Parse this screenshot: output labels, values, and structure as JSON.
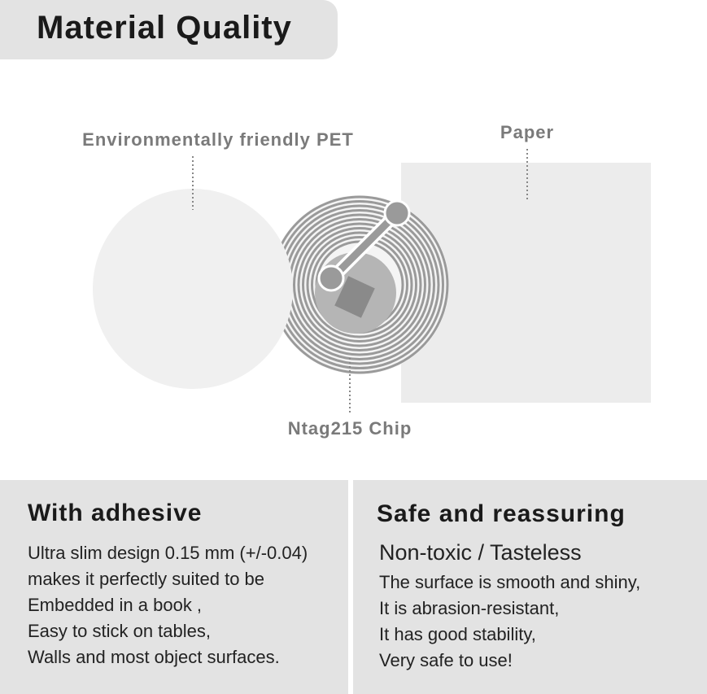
{
  "title": "Material Quality",
  "labels": {
    "pet": "Environmentally friendly PET",
    "paper": "Paper",
    "chip": "Ntag215 Chip"
  },
  "left_panel": {
    "heading": "With adhesive",
    "lines": [
      "Ultra slim design 0.15 mm (+/-0.04)",
      "makes it perfectly suited to be",
      "Embedded in a book ,",
      "Easy to stick on tables,",
      "Walls and most object surfaces."
    ]
  },
  "right_panel": {
    "heading": "Safe and reassuring",
    "subheading": "Non-toxic / Tasteless",
    "lines": [
      "The surface is smooth and shiny,",
      "It is abrasion-resistant,",
      "It has good stability,",
      "Very safe to use!"
    ]
  },
  "colors": {
    "panel": "#e3e3e3",
    "label": "#7a7a7a",
    "antenna": "#9a9a9a"
  }
}
